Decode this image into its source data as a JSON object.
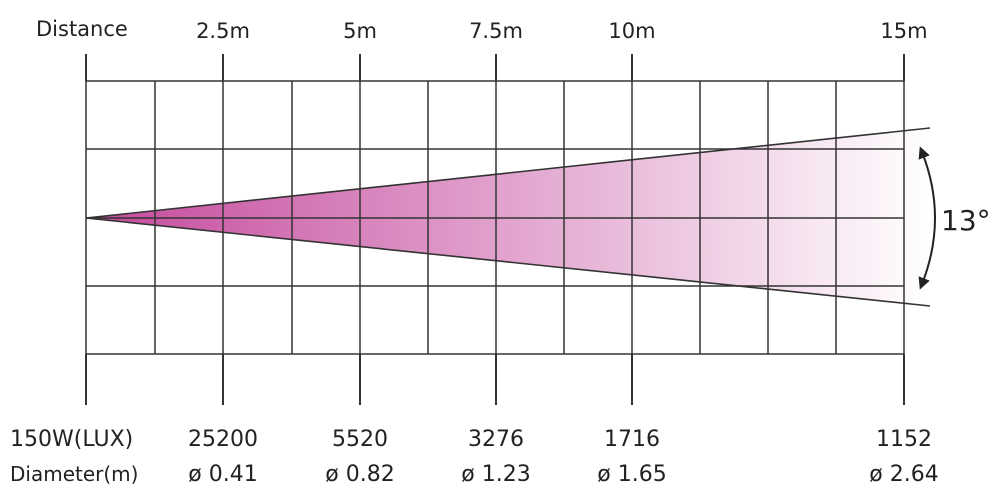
{
  "header": {
    "distance_label": "Distance",
    "marks": [
      "2.5m",
      "5m",
      "7.5m",
      "10m",
      "15m"
    ]
  },
  "footer": {
    "row1_label": "150W(LUX)",
    "lux_values": [
      "25200",
      "5520",
      "3276",
      "1716",
      "1152"
    ],
    "row2_label": "Diameter(m)",
    "diameters": [
      "ø 0.41",
      "ø 0.82",
      "ø 1.23",
      "ø 1.65",
      "ø 2.64"
    ]
  },
  "beam": {
    "angle_label": "13°",
    "color_start": "#c4489c",
    "color_end": "#ffffff"
  },
  "colors": {
    "grid": "#333333",
    "text": "#222222"
  }
}
